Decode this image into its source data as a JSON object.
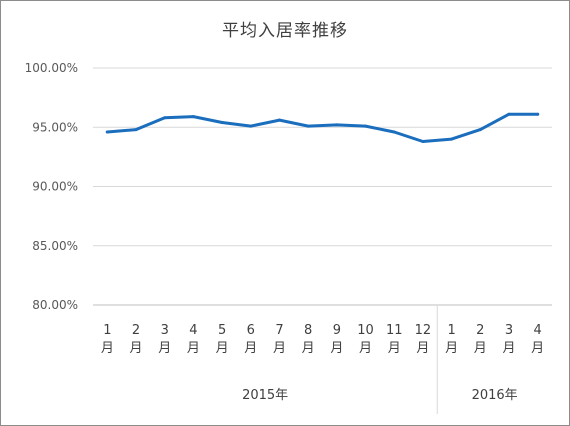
{
  "chart_data": {
    "type": "line",
    "title": "平均入居率推移",
    "xlabel": "",
    "ylabel": "",
    "ylim": [
      80,
      100
    ],
    "yticks": [
      "100.00%",
      "95.00%",
      "90.00%",
      "85.00%",
      "80.00%"
    ],
    "grid": true,
    "color": "#1a6ebd",
    "categories": [
      "1\n月",
      "2\n月",
      "3\n月",
      "4\n月",
      "5\n月",
      "6\n月",
      "7\n月",
      "8\n月",
      "9\n月",
      "10\n月",
      "11\n月",
      "12\n月",
      "1\n月",
      "2\n月",
      "3\n月",
      "4\n月"
    ],
    "month_labels": [
      "1",
      "2",
      "3",
      "4",
      "5",
      "6",
      "7",
      "8",
      "9",
      "10",
      "11",
      "12",
      "1",
      "2",
      "3",
      "4"
    ],
    "month_suffix": "月",
    "groups": [
      {
        "label": "2015年",
        "count": 12
      },
      {
        "label": "2016年",
        "count": 4
      }
    ],
    "series": [
      {
        "values": [
          94.6,
          94.8,
          95.8,
          95.9,
          95.4,
          95.1,
          95.6,
          95.1,
          95.2,
          95.1,
          94.6,
          93.8,
          94.0,
          94.8,
          96.1,
          96.1
        ]
      }
    ]
  }
}
